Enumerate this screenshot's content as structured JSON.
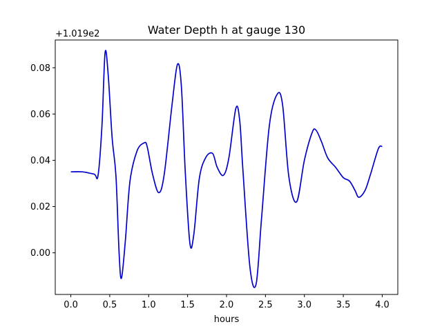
{
  "chart_data": {
    "type": "line",
    "title": "Water Depth h at gauge 130",
    "xlabel": "hours",
    "ylabel": "",
    "y_offset_label": "+1.019e2",
    "xlim": [
      -0.2,
      4.2
    ],
    "ylim": [
      -0.018,
      0.092
    ],
    "x_ticks": [
      0.0,
      0.5,
      1.0,
      1.5,
      2.0,
      2.5,
      3.0,
      3.5,
      4.0
    ],
    "x_tick_labels": [
      "0.0",
      "0.5",
      "1.0",
      "1.5",
      "2.0",
      "2.5",
      "3.0",
      "3.5",
      "4.0"
    ],
    "y_ticks": [
      0.0,
      0.02,
      0.04,
      0.06,
      0.08
    ],
    "y_tick_labels": [
      "0.00",
      "0.02",
      "0.04",
      "0.06",
      "0.08"
    ],
    "grid": false,
    "line_color": "#0000cc",
    "series": [
      {
        "name": "",
        "x": [
          0.0,
          0.15,
          0.3,
          0.35,
          0.4,
          0.44,
          0.48,
          0.53,
          0.58,
          0.62,
          0.65,
          0.7,
          0.76,
          0.85,
          0.94,
          0.98,
          1.05,
          1.13,
          1.2,
          1.3,
          1.37,
          1.42,
          1.47,
          1.53,
          1.58,
          1.65,
          1.73,
          1.82,
          1.88,
          1.96,
          2.03,
          2.12,
          2.17,
          2.21,
          2.3,
          2.38,
          2.45,
          2.55,
          2.65,
          2.72,
          2.8,
          2.9,
          3.0,
          3.1,
          3.15,
          3.22,
          3.3,
          3.4,
          3.5,
          3.58,
          3.65,
          3.7,
          3.78,
          3.85,
          3.95,
          4.0
        ],
        "y": [
          0.035,
          0.035,
          0.034,
          0.0335,
          0.055,
          0.0865,
          0.077,
          0.05,
          0.033,
          0.0,
          -0.011,
          0.005,
          0.031,
          0.044,
          0.0475,
          0.046,
          0.034,
          0.026,
          0.034,
          0.064,
          0.0815,
          0.072,
          0.035,
          0.004,
          0.008,
          0.032,
          0.041,
          0.043,
          0.037,
          0.0335,
          0.041,
          0.0625,
          0.057,
          0.036,
          -0.006,
          -0.0135,
          0.015,
          0.055,
          0.0685,
          0.064,
          0.033,
          0.022,
          0.04,
          0.052,
          0.053,
          0.048,
          0.041,
          0.037,
          0.0325,
          0.031,
          0.027,
          0.024,
          0.027,
          0.034,
          0.045,
          0.046
        ]
      }
    ]
  }
}
